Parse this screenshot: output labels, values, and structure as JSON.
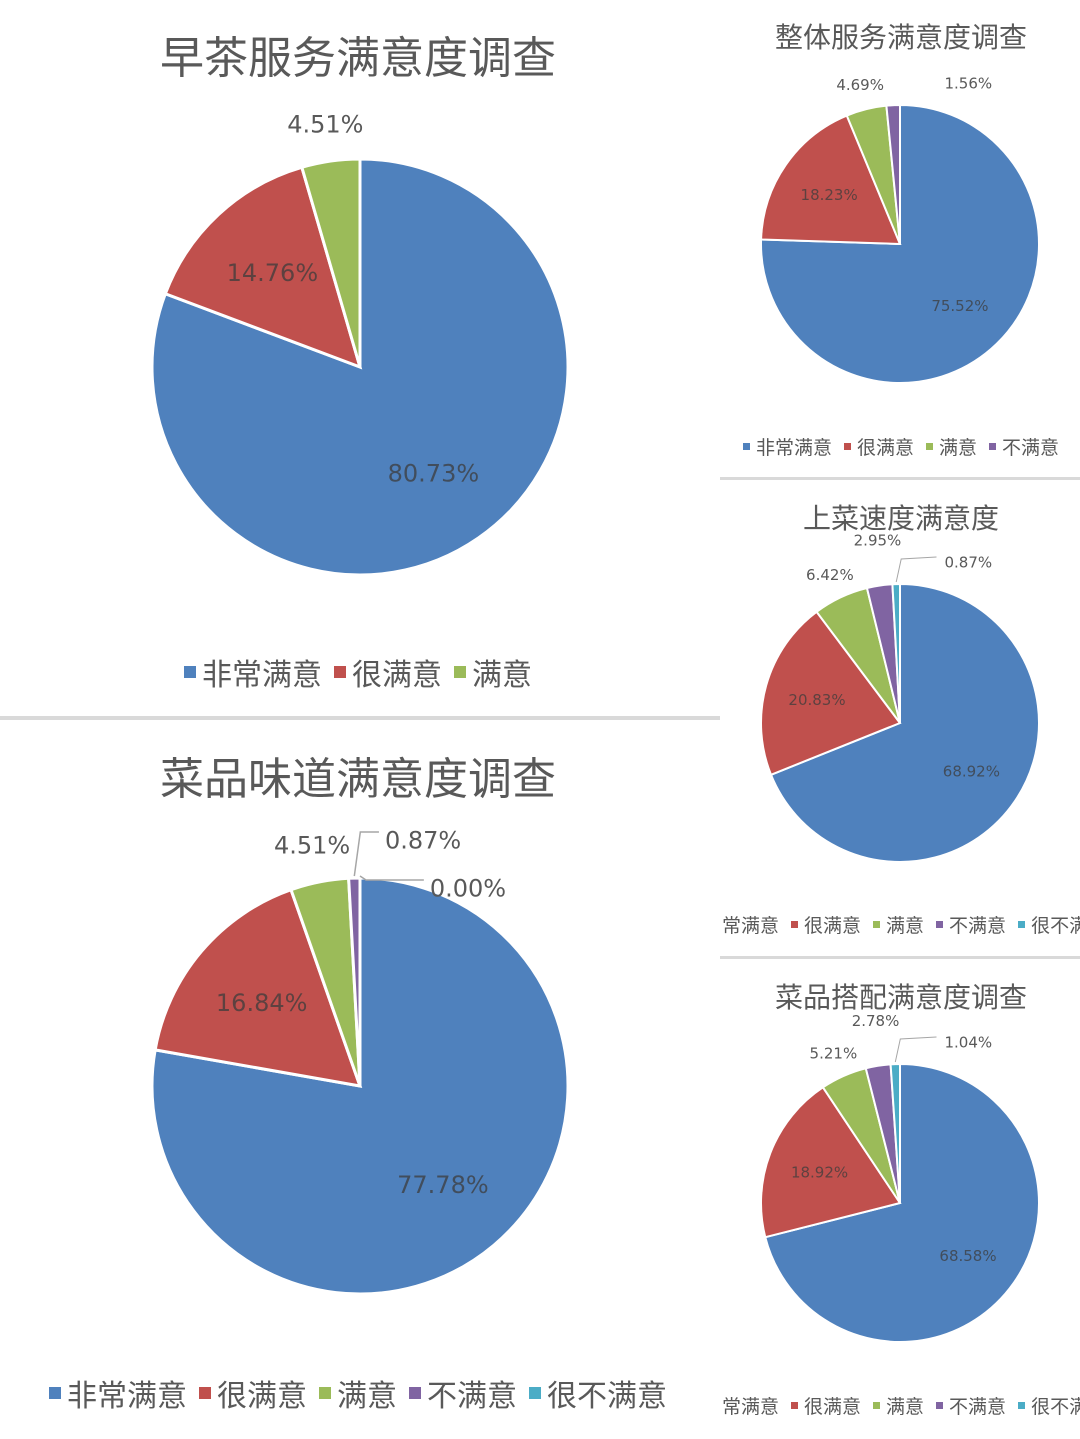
{
  "colors": {
    "非常满意": "#4f81bd",
    "很满意": "#c0504d",
    "满意": "#9bbb59",
    "不满意": "#8064a2",
    "很不满意": "#4bacc6"
  },
  "chart_data": [
    {
      "type": "pie",
      "title": "早茶服务满意度调查",
      "legend_position": "bottom",
      "categories": [
        "非常满意",
        "很满意",
        "满意"
      ],
      "values": [
        80.73,
        14.76,
        4.51
      ],
      "labels": [
        "80.73%",
        "14.76%",
        "4.51%"
      ]
    },
    {
      "type": "pie",
      "title": "菜品味道满意度调查",
      "legend_position": "bottom",
      "categories": [
        "非常满意",
        "很满意",
        "满意",
        "不满意",
        "很不满意"
      ],
      "values": [
        77.78,
        16.84,
        4.51,
        0.87,
        0.0
      ],
      "labels": [
        "77.78%",
        "16.84%",
        "4.51%",
        "0.87%",
        "0.00%"
      ]
    },
    {
      "type": "pie",
      "title": "整体服务满意度调查",
      "legend_position": "bottom",
      "categories": [
        "非常满意",
        "很满意",
        "满意",
        "不满意"
      ],
      "values": [
        75.52,
        18.23,
        4.69,
        1.56
      ],
      "labels": [
        "75.52%",
        "18.23%",
        "4.69%",
        "1.56%"
      ]
    },
    {
      "type": "pie",
      "title": "上菜速度满意度",
      "legend_position": "bottom",
      "categories": [
        "非常满意",
        "很满意",
        "满意",
        "不满意",
        "很不满意"
      ],
      "values": [
        68.92,
        20.83,
        6.42,
        2.95,
        0.87
      ],
      "labels": [
        "68.92%",
        "20.83%",
        "6.42%",
        "2.95%",
        "0.87%"
      ]
    },
    {
      "type": "pie",
      "title": "菜品搭配满意度调查",
      "legend_position": "bottom",
      "categories": [
        "非常满意",
        "很满意",
        "满意",
        "不满意",
        "很不满意"
      ],
      "values": [
        68.58,
        18.92,
        5.21,
        2.78,
        1.04
      ],
      "labels": [
        "68.58%",
        "18.92%",
        "5.21%",
        "2.78%",
        "1.04%"
      ]
    }
  ]
}
